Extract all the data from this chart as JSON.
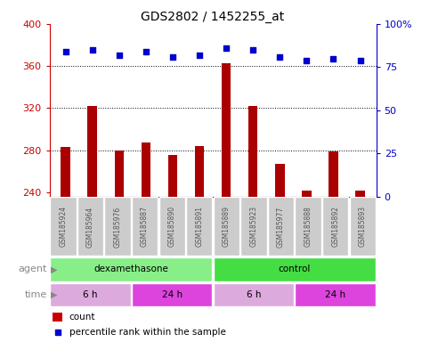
{
  "title": "GDS2802 / 1452255_at",
  "samples": [
    "GSM185924",
    "GSM185964",
    "GSM185976",
    "GSM185887",
    "GSM185890",
    "GSM185891",
    "GSM185889",
    "GSM185923",
    "GSM185977",
    "GSM185888",
    "GSM185892",
    "GSM185893"
  ],
  "counts": [
    283,
    322,
    280,
    287,
    276,
    284,
    363,
    322,
    267,
    242,
    279,
    242
  ],
  "percentiles": [
    84,
    85,
    82,
    84,
    81,
    82,
    86,
    85,
    81,
    79,
    80,
    79
  ],
  "ymin": 236,
  "ymax": 400,
  "yticks": [
    240,
    280,
    320,
    360,
    400
  ],
  "yright_ticks": [
    0,
    25,
    50,
    75,
    100
  ],
  "yright_min": 0,
  "yright_max": 100,
  "bar_color": "#aa0000",
  "dot_color": "#0000cc",
  "agent_row": [
    {
      "label": "dexamethasone",
      "start": 0,
      "end": 6,
      "color": "#88ee88"
    },
    {
      "label": "control",
      "start": 6,
      "end": 12,
      "color": "#44dd44"
    }
  ],
  "time_row": [
    {
      "label": "6 h",
      "start": 0,
      "end": 3,
      "color": "#ddaadd"
    },
    {
      "label": "24 h",
      "start": 3,
      "end": 6,
      "color": "#dd44dd"
    },
    {
      "label": "6 h",
      "start": 6,
      "end": 9,
      "color": "#ddaadd"
    },
    {
      "label": "24 h",
      "start": 9,
      "end": 12,
      "color": "#dd44dd"
    }
  ],
  "legend_count_color": "#cc0000",
  "legend_dot_color": "#0000cc",
  "left_axis_color": "#cc0000",
  "right_axis_color": "#0000cc",
  "label_bg_color": "#cccccc",
  "label_text_color": "#555555"
}
